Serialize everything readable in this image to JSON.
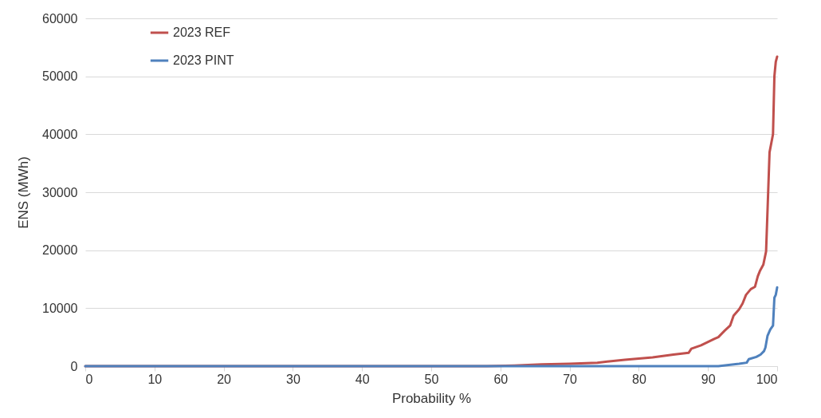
{
  "chart_data": {
    "type": "line",
    "xlabel": "Probability %",
    "ylabel": "ENS (MWh)",
    "xlim": [
      0,
      100
    ],
    "xticks": [
      0,
      10,
      20,
      30,
      40,
      50,
      60,
      70,
      80,
      90,
      100
    ],
    "ylim": [
      0,
      60000
    ],
    "yticks": [
      0,
      10000,
      20000,
      30000,
      40000,
      50000,
      60000
    ],
    "grid": "y",
    "legend": "top left",
    "marker": "none",
    "line_style": "solid",
    "series": [
      {
        "name": "2023 REF",
        "color": "#c0504d",
        "x": [
          0,
          58,
          62,
          66,
          70,
          74,
          78,
          82,
          85,
          87.2,
          87.6,
          89,
          90.9,
          91.5,
          92.4,
          93.2,
          93.7,
          94.5,
          95,
          95.5,
          96.2,
          96.8,
          97.2,
          97.5,
          98,
          98.4,
          98.7,
          98.9,
          99.4,
          99.6,
          99.8,
          100
        ],
        "values": [
          0,
          0,
          100,
          300,
          400,
          600,
          1100,
          1500,
          2000,
          2300,
          3000,
          3600,
          4700,
          5000,
          6100,
          7000,
          8700,
          9800,
          10800,
          12300,
          13300,
          13700,
          15500,
          16400,
          17500,
          19800,
          30000,
          36900,
          40000,
          50000,
          52500,
          53400
        ]
      },
      {
        "name": "2023 PINT",
        "color": "#4f81bd",
        "x": [
          0,
          91.5,
          93,
          94.5,
          95.6,
          95.9,
          97,
          97.6,
          98.1,
          98.3,
          98.6,
          99.0,
          99.4,
          99.6,
          99.8,
          100
        ],
        "values": [
          0,
          0,
          200,
          400,
          600,
          1200,
          1600,
          2000,
          2600,
          3200,
          5200,
          6300,
          7000,
          11800,
          12300,
          13600
        ]
      }
    ]
  }
}
